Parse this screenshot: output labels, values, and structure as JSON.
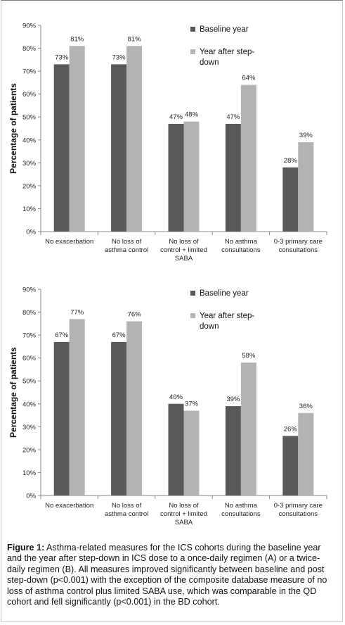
{
  "chart_data": [
    {
      "type": "bar",
      "categories": [
        [
          "No exacerbation"
        ],
        [
          "No loss of",
          "asthma control"
        ],
        [
          "No loss of",
          "control + limited",
          "SABA"
        ],
        [
          "No asthma",
          "consultations"
        ],
        [
          "0-3 primary care",
          "consultations"
        ]
      ],
      "series": [
        {
          "name": "Baseline year",
          "values": [
            73,
            73,
            47,
            47,
            28
          ],
          "labels": [
            "73%",
            "73%",
            "47%",
            "47%",
            "28%"
          ]
        },
        {
          "name": "Year after step-down",
          "values": [
            81,
            81,
            48,
            64,
            39
          ],
          "labels": [
            "81%",
            "81%",
            "48%",
            "64%",
            "39%"
          ]
        }
      ],
      "ylabel": "Percentage of patients",
      "ylim": [
        0,
        90
      ],
      "yticks": [
        "0%",
        "10%",
        "20%",
        "30%",
        "40%",
        "50%",
        "60%",
        "70%",
        "80%",
        "90%"
      ],
      "legend_position": "top-right",
      "colors": [
        "#595959",
        "#b3b3b3"
      ]
    },
    {
      "type": "bar",
      "categories": [
        [
          "No exacerbation"
        ],
        [
          "No loss of",
          "asthma control"
        ],
        [
          "No loss of",
          "control + limited",
          "SABA"
        ],
        [
          "No asthma",
          "consultations"
        ],
        [
          "0-3 primary care",
          "consultations"
        ]
      ],
      "series": [
        {
          "name": "Baseline year",
          "values": [
            67,
            67,
            40,
            39,
            26
          ],
          "labels": [
            "67%",
            "67%",
            "40%",
            "39%",
            "26%"
          ]
        },
        {
          "name": "Year after step-down",
          "values": [
            77,
            76,
            37,
            58,
            36
          ],
          "labels": [
            "77%",
            "76%",
            "37%",
            "58%",
            "36%"
          ]
        }
      ],
      "ylabel": "Percentage of patients",
      "ylim": [
        0,
        90
      ],
      "yticks": [
        "0%",
        "10%",
        "20%",
        "30%",
        "40%",
        "50%",
        "60%",
        "70%",
        "80%",
        "90%"
      ],
      "legend_position": "top-right",
      "colors": [
        "#595959",
        "#b3b3b3"
      ]
    }
  ],
  "caption": {
    "label": "Figure 1:",
    "text": " Asthma-related measures for the ICS cohorts during the baseline year and the year after step-down in ICS dose to a once-daily regimen (A) or a twice-daily regimen (B). All measures improved significantly between baseline and post step-down (p<0.001) with the exception of the composite database measure of no loss of asthma control plus limited SABA use, which was comparable in the QD cohort and fell significantly (p<0.001) in the BD cohort."
  }
}
